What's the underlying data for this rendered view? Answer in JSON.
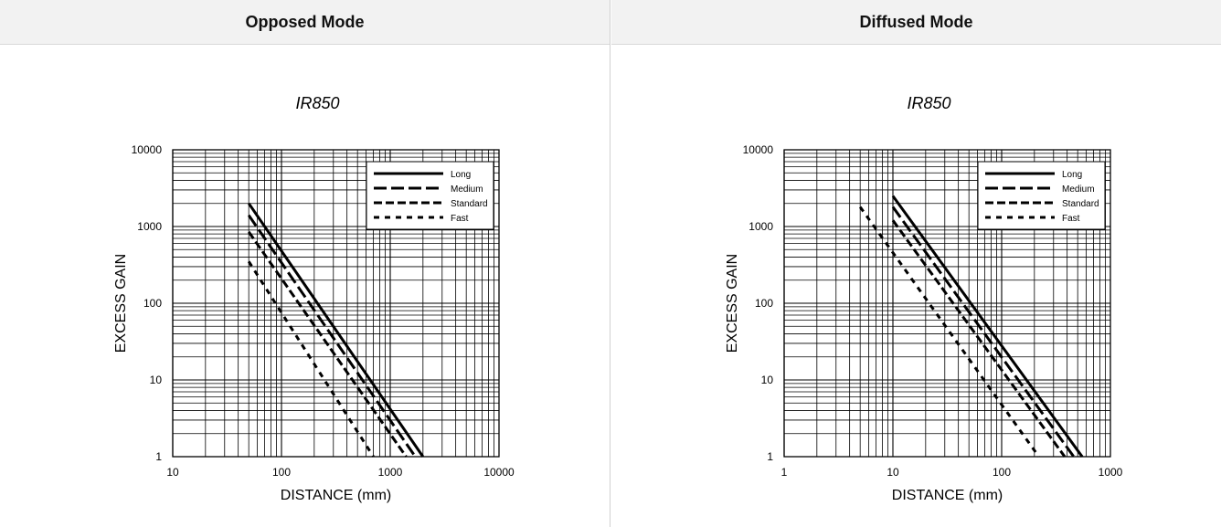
{
  "columns": [
    {
      "header": "Opposed Mode"
    },
    {
      "header": "Diffused Mode"
    }
  ],
  "chart_data": [
    {
      "type": "line",
      "title": "IR850",
      "xlabel": "DISTANCE (mm)",
      "ylabel": "EXCESS GAIN",
      "xscale": "log",
      "yscale": "log",
      "xlim": [
        10,
        10000
      ],
      "ylim": [
        1,
        10000
      ],
      "xticks": [
        "10",
        "100",
        "1000",
        "10000"
      ],
      "yticks": [
        "1",
        "10",
        "100",
        "1000",
        "10000"
      ],
      "grid": true,
      "legend_position": "top-right",
      "series": [
        {
          "name": "Long",
          "style": "solid",
          "x": [
            50,
            2000
          ],
          "y": [
            2000,
            1
          ]
        },
        {
          "name": "Medium",
          "style": "long-dash",
          "x": [
            50,
            1700
          ],
          "y": [
            1400,
            1
          ]
        },
        {
          "name": "Standard",
          "style": "dash",
          "x": [
            50,
            1400
          ],
          "y": [
            850,
            1
          ]
        },
        {
          "name": "Fast",
          "style": "short-dash",
          "x": [
            50,
            700
          ],
          "y": [
            350,
            1
          ]
        }
      ]
    },
    {
      "type": "line",
      "title": "IR850",
      "xlabel": "DISTANCE (mm)",
      "ylabel": "EXCESS GAIN",
      "xscale": "log",
      "yscale": "log",
      "xlim": [
        1,
        1000
      ],
      "ylim": [
        1,
        10000
      ],
      "xticks": [
        "1",
        "10",
        "100",
        "1000"
      ],
      "yticks": [
        "1",
        "10",
        "100",
        "1000",
        "10000"
      ],
      "grid": true,
      "legend_position": "top-right",
      "series": [
        {
          "name": "Long",
          "style": "solid",
          "x": [
            10,
            550
          ],
          "y": [
            2500,
            1
          ]
        },
        {
          "name": "Medium",
          "style": "long-dash",
          "x": [
            10,
            460
          ],
          "y": [
            1800,
            1
          ]
        },
        {
          "name": "Standard",
          "style": "dash",
          "x": [
            10,
            380
          ],
          "y": [
            1200,
            1
          ]
        },
        {
          "name": "Fast",
          "style": "short-dash",
          "x": [
            5,
            220
          ],
          "y": [
            1800,
            1
          ]
        }
      ]
    }
  ]
}
